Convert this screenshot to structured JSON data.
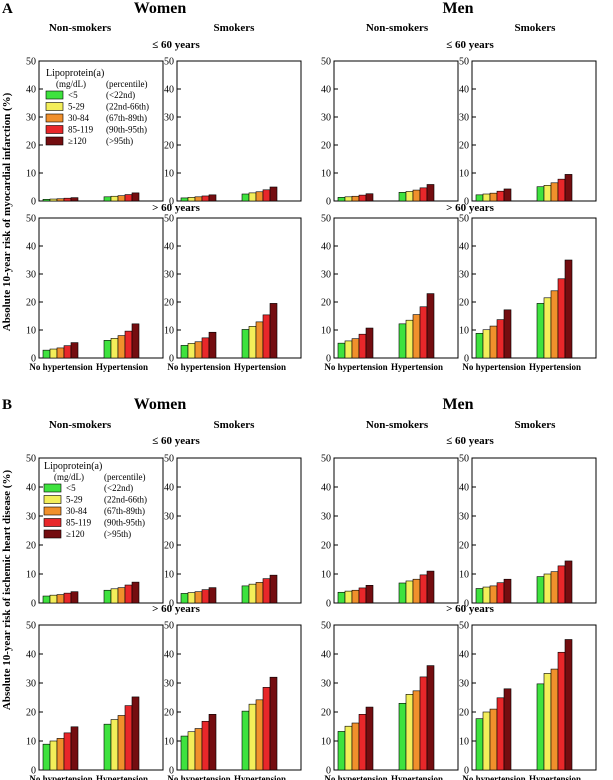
{
  "figure": {
    "sections": [
      {
        "letter": "A",
        "ylabel": "Absolute 10-year risk of myocardial infarction (%)"
      },
      {
        "letter": "B",
        "ylabel": "Absolute 10-year risk of ischemic heart disease (%)"
      }
    ],
    "sexes": [
      "Women",
      "Men"
    ],
    "smoking_groups": [
      "Non-smokers",
      "Smokers"
    ],
    "age_groups": [
      "≤ 60 years",
      "> 60 years"
    ],
    "legend": {
      "title": "Lipoprotein(a)",
      "unit_header": "(mg/dL)",
      "percentile_header": "(percentile)",
      "entries": [
        {
          "range": "<5",
          "percentile": "(<22nd)",
          "color": "#3ee23e"
        },
        {
          "range": "5-29",
          "percentile": "(22nd-66th)",
          "color": "#f3ee5a"
        },
        {
          "range": "30-84",
          "percentile": "(67th-89th)",
          "color": "#f0902c"
        },
        {
          "range": "85-119",
          "percentile": "(90th-95th)",
          "color": "#e8272a"
        },
        {
          "range": "≥120",
          "percentile": "(>95th)",
          "color": "#740d10"
        }
      ]
    }
  },
  "chart_data": [
    {
      "section": "A",
      "sex": "Women",
      "smoking": "Non-smokers",
      "age": "≤ 60 years",
      "type": "bar",
      "categories": [
        "No hypertension",
        "Hypertension"
      ],
      "ylim": [
        0,
        50
      ],
      "yticks": [
        0,
        10,
        20,
        30,
        40,
        50
      ],
      "values": [
        [
          0.6,
          0.7,
          0.8,
          1.0,
          1.2
        ],
        [
          1.5,
          1.7,
          1.9,
          2.3,
          2.9
        ]
      ]
    },
    {
      "section": "A",
      "sex": "Women",
      "smoking": "Smokers",
      "age": "≤ 60 years",
      "type": "bar",
      "categories": [
        "No hypertension",
        "Hypertension"
      ],
      "ylim": [
        0,
        50
      ],
      "yticks": [
        0,
        10,
        20,
        30,
        40,
        50
      ],
      "values": [
        [
          1.1,
          1.3,
          1.5,
          1.8,
          2.2
        ],
        [
          2.5,
          2.9,
          3.3,
          4.0,
          5.0
        ]
      ]
    },
    {
      "section": "A",
      "sex": "Men",
      "smoking": "Non-smokers",
      "age": "≤ 60 years",
      "type": "bar",
      "categories": [
        "No hypertension",
        "Hypertension"
      ],
      "ylim": [
        0,
        50
      ],
      "yticks": [
        0,
        10,
        20,
        30,
        40,
        50
      ],
      "values": [
        [
          1.3,
          1.5,
          1.7,
          2.1,
          2.6
        ],
        [
          3.1,
          3.4,
          3.9,
          4.7,
          5.9
        ]
      ]
    },
    {
      "section": "A",
      "sex": "Men",
      "smoking": "Smokers",
      "age": "≤ 60 years",
      "type": "bar",
      "categories": [
        "No hypertension",
        "Hypertension"
      ],
      "ylim": [
        0,
        50
      ],
      "yticks": [
        0,
        10,
        20,
        30,
        40,
        50
      ],
      "values": [
        [
          2.2,
          2.5,
          2.8,
          3.5,
          4.3
        ],
        [
          5.1,
          5.6,
          6.5,
          7.8,
          9.5
        ]
      ]
    },
    {
      "section": "A",
      "sex": "Women",
      "smoking": "Non-smokers",
      "age": "> 60 years",
      "type": "bar",
      "categories": [
        "No hypertension",
        "Hypertension"
      ],
      "ylim": [
        0,
        50
      ],
      "yticks": [
        0,
        10,
        20,
        30,
        40,
        50
      ],
      "values": [
        [
          2.8,
          3.2,
          3.6,
          4.4,
          5.5
        ],
        [
          6.3,
          7.0,
          8.0,
          9.6,
          12.2
        ]
      ]
    },
    {
      "section": "A",
      "sex": "Women",
      "smoking": "Smokers",
      "age": "> 60 years",
      "type": "bar",
      "categories": [
        "No hypertension",
        "Hypertension"
      ],
      "ylim": [
        0,
        50
      ],
      "yticks": [
        0,
        10,
        20,
        30,
        40,
        50
      ],
      "values": [
        [
          4.5,
          5.2,
          5.8,
          7.2,
          9.2
        ],
        [
          10.2,
          11.3,
          12.9,
          15.4,
          19.5
        ]
      ]
    },
    {
      "section": "A",
      "sex": "Men",
      "smoking": "Non-smokers",
      "age": "> 60 years",
      "type": "bar",
      "categories": [
        "No hypertension",
        "Hypertension"
      ],
      "ylim": [
        0,
        50
      ],
      "yticks": [
        0,
        10,
        20,
        30,
        40,
        50
      ],
      "values": [
        [
          5.3,
          6.1,
          6.9,
          8.5,
          10.7
        ],
        [
          12.2,
          13.5,
          15.5,
          18.3,
          23.0
        ]
      ]
    },
    {
      "section": "A",
      "sex": "Men",
      "smoking": "Smokers",
      "age": "> 60 years",
      "type": "bar",
      "categories": [
        "No hypertension",
        "Hypertension"
      ],
      "ylim": [
        0,
        50
      ],
      "yticks": [
        0,
        10,
        20,
        30,
        40,
        50
      ],
      "values": [
        [
          8.8,
          10.1,
          11.4,
          13.7,
          17.2
        ],
        [
          19.5,
          21.5,
          24.0,
          28.3,
          35.0
        ]
      ]
    },
    {
      "section": "B",
      "sex": "Women",
      "smoking": "Non-smokers",
      "age": "≤ 60 years",
      "type": "bar",
      "categories": [
        "No hypertension",
        "Hypertension"
      ],
      "ylim": [
        0,
        50
      ],
      "yticks": [
        0,
        10,
        20,
        30,
        40,
        50
      ],
      "values": [
        [
          2.4,
          2.7,
          2.9,
          3.4,
          3.9
        ],
        [
          4.4,
          4.9,
          5.3,
          6.2,
          7.2
        ]
      ]
    },
    {
      "section": "B",
      "sex": "Women",
      "smoking": "Smokers",
      "age": "≤ 60 years",
      "type": "bar",
      "categories": [
        "No hypertension",
        "Hypertension"
      ],
      "ylim": [
        0,
        50
      ],
      "yticks": [
        0,
        10,
        20,
        30,
        40,
        50
      ],
      "values": [
        [
          3.3,
          3.6,
          3.9,
          4.6,
          5.3
        ],
        [
          5.9,
          6.5,
          7.1,
          8.4,
          9.6
        ]
      ]
    },
    {
      "section": "B",
      "sex": "Men",
      "smoking": "Non-smokers",
      "age": "≤ 60 years",
      "type": "bar",
      "categories": [
        "No hypertension",
        "Hypertension"
      ],
      "ylim": [
        0,
        50
      ],
      "yticks": [
        0,
        10,
        20,
        30,
        40,
        50
      ],
      "values": [
        [
          3.7,
          4.1,
          4.4,
          5.2,
          6.1
        ],
        [
          6.9,
          7.6,
          8.2,
          9.7,
          11.0
        ]
      ]
    },
    {
      "section": "B",
      "sex": "Men",
      "smoking": "Smokers",
      "age": "≤ 60 years",
      "type": "bar",
      "categories": [
        "No hypertension",
        "Hypertension"
      ],
      "ylim": [
        0,
        50
      ],
      "yticks": [
        0,
        10,
        20,
        30,
        40,
        50
      ],
      "values": [
        [
          5.0,
          5.5,
          5.9,
          7.0,
          8.2
        ],
        [
          9.1,
          10.0,
          10.8,
          12.8,
          14.5
        ]
      ]
    },
    {
      "section": "B",
      "sex": "Women",
      "smoking": "Non-smokers",
      "age": "> 60 years",
      "type": "bar",
      "categories": [
        "No hypertension",
        "Hypertension"
      ],
      "ylim": [
        0,
        50
      ],
      "yticks": [
        0,
        10,
        20,
        30,
        40,
        50
      ],
      "values": [
        [
          8.9,
          10.0,
          10.9,
          12.8,
          14.9
        ],
        [
          15.8,
          17.4,
          18.8,
          22.2,
          25.2
        ]
      ]
    },
    {
      "section": "B",
      "sex": "Women",
      "smoking": "Smokers",
      "age": "> 60 years",
      "type": "bar",
      "categories": [
        "No hypertension",
        "Hypertension"
      ],
      "ylim": [
        0,
        50
      ],
      "yticks": [
        0,
        10,
        20,
        30,
        40,
        50
      ],
      "values": [
        [
          11.7,
          13.2,
          14.3,
          16.8,
          19.2
        ],
        [
          20.3,
          22.7,
          24.2,
          28.5,
          32.0
        ]
      ]
    },
    {
      "section": "B",
      "sex": "Men",
      "smoking": "Non-smokers",
      "age": "> 60 years",
      "type": "bar",
      "categories": [
        "No hypertension",
        "Hypertension"
      ],
      "ylim": [
        0,
        50
      ],
      "yticks": [
        0,
        10,
        20,
        30,
        40,
        50
      ],
      "values": [
        [
          13.3,
          15.1,
          16.2,
          19.2,
          21.7
        ],
        [
          23.0,
          26.1,
          27.3,
          32.1,
          36.0
        ]
      ]
    },
    {
      "section": "B",
      "sex": "Men",
      "smoking": "Smokers",
      "age": "> 60 years",
      "type": "bar",
      "categories": [
        "No hypertension",
        "Hypertension"
      ],
      "ylim": [
        0,
        50
      ],
      "yticks": [
        0,
        10,
        20,
        30,
        40,
        50
      ],
      "values": [
        [
          17.7,
          20.0,
          21.0,
          24.9,
          28.0
        ],
        [
          29.7,
          33.3,
          34.8,
          40.6,
          45.0
        ]
      ]
    }
  ]
}
